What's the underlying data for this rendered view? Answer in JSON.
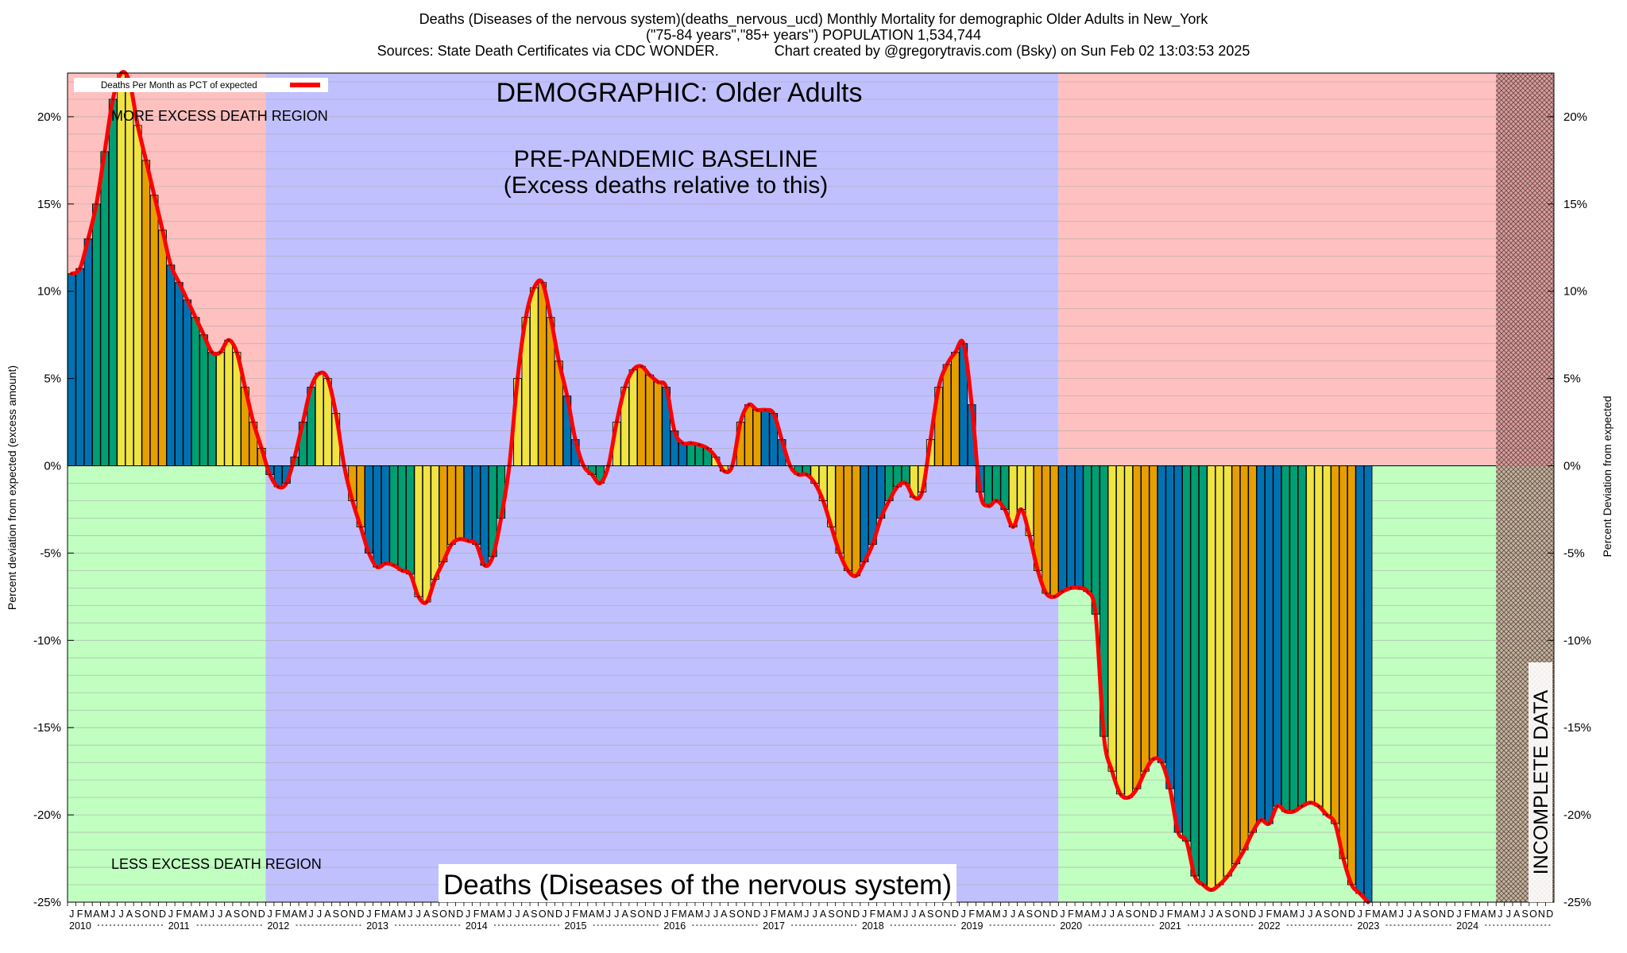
{
  "header": {
    "title_line1": "Deaths (Diseases of the nervous system)(deaths_nervous_ucd) Monthly Mortality for demographic Older Adults in New_York",
    "title_line2": "(\"75-84 years\",\"85+ years\") POPULATION 1,534,744",
    "title_line3_left": "Sources: State Death Certificates via CDC WONDER.",
    "title_line3_right": "Chart created by @gregorytravis.com (Bsky) on Sun Feb 02 13:03:53 2025"
  },
  "annotations": {
    "demographic": "DEMOGRAPHIC: Older Adults",
    "baseline_line1": "PRE-PANDEMIC BASELINE",
    "baseline_line2": "(Excess deaths relative to this)",
    "more_excess": "MORE EXCESS DEATH REGION",
    "less_excess": "LESS EXCESS DEATH REGION",
    "cause_label": "Deaths (Diseases of the nervous system)",
    "incomplete": "INCOMPLETE DATA",
    "legend_label": "Deaths Per Month as PCT of expected"
  },
  "colors": {
    "more_region": "#ffc0c0",
    "less_region": "#c0ffc0",
    "baseline_region": "#c0c0ff",
    "line": "#ff0000",
    "bar_palette": [
      "#0072b2",
      "#009e73",
      "#f0e442",
      "#e69f00"
    ],
    "hatch": "#c08080"
  },
  "chart_data": {
    "type": "bar",
    "ylabel": "Percent deviation from expected (excess amount)",
    "ylabel_right": "Percent Deviation from expected",
    "ylim": [
      -25,
      22.5
    ],
    "yticks": [
      -25,
      -20,
      -15,
      -10,
      -5,
      0,
      5,
      10,
      15,
      20
    ],
    "ytick_labels": [
      "-25%",
      "-20%",
      "-15%",
      "-10%",
      "-5%",
      "0%",
      "5%",
      "10%",
      "15%",
      "20%"
    ],
    "grid": true,
    "legend_position": "top-left",
    "month_letters": [
      "J",
      "F",
      "M",
      "A",
      "M",
      "J",
      "J",
      "A",
      "S",
      "O",
      "N",
      "D"
    ],
    "years": [
      "2010",
      "2011",
      "2012",
      "2013",
      "2014",
      "2015",
      "2016",
      "2017",
      "2018",
      "2019",
      "2020",
      "2021",
      "2022",
      "2023",
      "2024"
    ],
    "baseline_period": [
      "2012-01",
      "2019-12"
    ],
    "incomplete_from": "2024-06",
    "start": "2010-01",
    "series": [
      {
        "name": "Deaths Per Month as PCT of expected",
        "values": [
          11.0,
          11.3,
          13.0,
          15.0,
          18.0,
          21.0,
          22.5,
          22.0,
          19.5,
          17.5,
          15.5,
          13.5,
          11.5,
          10.5,
          9.5,
          8.5,
          7.5,
          6.5,
          6.5,
          7.2,
          6.5,
          4.5,
          2.5,
          1.0,
          -0.5,
          -1.2,
          -1.0,
          0.5,
          2.5,
          4.5,
          5.3,
          5.0,
          3.0,
          0.0,
          -2.0,
          -3.5,
          -5.0,
          -5.8,
          -5.6,
          -5.7,
          -6.0,
          -6.2,
          -7.5,
          -7.8,
          -6.5,
          -5.5,
          -4.5,
          -4.2,
          -4.3,
          -4.5,
          -5.7,
          -5.2,
          -3.0,
          0.0,
          5.0,
          8.5,
          10.2,
          10.5,
          8.5,
          6.0,
          4.0,
          1.5,
          0.0,
          -0.5,
          -1.0,
          0.0,
          2.5,
          4.5,
          5.5,
          5.7,
          5.2,
          4.8,
          4.5,
          2.0,
          1.3,
          1.3,
          1.2,
          1.0,
          0.5,
          -0.3,
          0.0,
          2.5,
          3.5,
          3.2,
          3.2,
          3.0,
          1.5,
          0.0,
          -0.5,
          -0.5,
          -1.0,
          -2.0,
          -3.5,
          -5.0,
          -6.0,
          -6.3,
          -5.5,
          -4.5,
          -3.0,
          -2.0,
          -1.2,
          -1.0,
          -1.8,
          -1.5,
          1.5,
          4.5,
          5.8,
          6.5,
          7.0,
          3.5,
          -1.5,
          -2.3,
          -2.0,
          -2.5,
          -3.5,
          -2.5,
          -4.0,
          -6.0,
          -7.3,
          -7.5,
          -7.2,
          -7.0,
          -7.0,
          -7.2,
          -8.5,
          -15.5,
          -17.5,
          -18.8,
          -19.0,
          -18.5,
          -17.5,
          -16.8,
          -17.0,
          -18.5,
          -21.0,
          -21.5,
          -23.5,
          -24.0,
          -24.3,
          -24.0,
          -23.5,
          -22.8,
          -22.0,
          -21.0,
          -20.3,
          -20.5,
          -19.5,
          -19.8,
          -19.8,
          -19.5,
          -19.3,
          -19.5,
          -20.0,
          -20.5,
          -22.5,
          -24.0,
          -24.5,
          -25.0
        ]
      }
    ]
  }
}
